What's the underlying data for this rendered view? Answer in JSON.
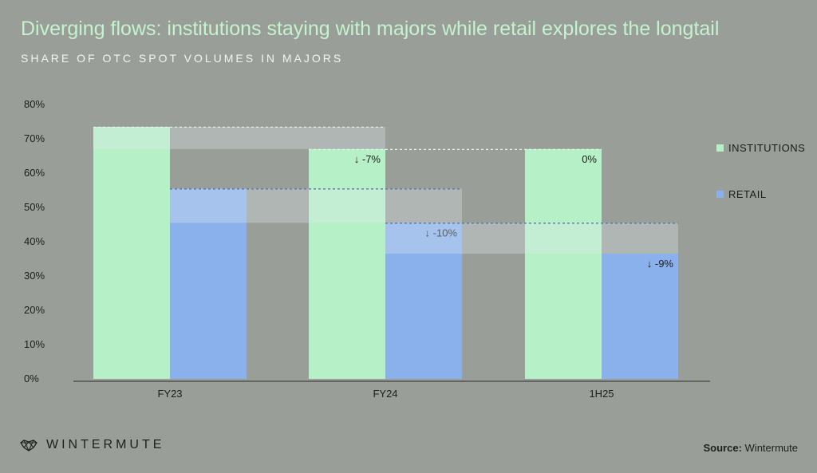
{
  "title": "Diverging flows: institutions staying with majors while retail explores the longtail",
  "subtitle": "SHARE OF OTC SPOT VOLUMES IN MAJORS",
  "brand": "WINTERMUTE",
  "source_label": "Source:",
  "source_value": "Wintermute",
  "colors": {
    "background": "#9a9e98",
    "institutions": "#b6f0c6",
    "retail": "#8ab1ec",
    "title": "#c5f2cf"
  },
  "chart_data": {
    "type": "bar",
    "categories": [
      "FY23",
      "FY24",
      "1H25"
    ],
    "series": [
      {
        "name": "INSTITUTIONS",
        "values": [
          73.5,
          67,
          67
        ]
      },
      {
        "name": "RETAIL",
        "values": [
          55.5,
          45.5,
          36.5
        ]
      }
    ],
    "yticks": [
      "0%",
      "10%",
      "20%",
      "30%",
      "40%",
      "50%",
      "60%",
      "70%",
      "80%"
    ],
    "ylim": [
      0,
      80
    ],
    "legend_position": "right",
    "annotations": [
      {
        "series": 0,
        "from": 0,
        "to": 1,
        "label": "↓ -7%"
      },
      {
        "series": 0,
        "from": 1,
        "to": 2,
        "label": "0%"
      },
      {
        "series": 1,
        "from": 0,
        "to": 1,
        "label": "↓ -10%"
      },
      {
        "series": 1,
        "from": 1,
        "to": 2,
        "label": "↓ -9%"
      }
    ]
  }
}
